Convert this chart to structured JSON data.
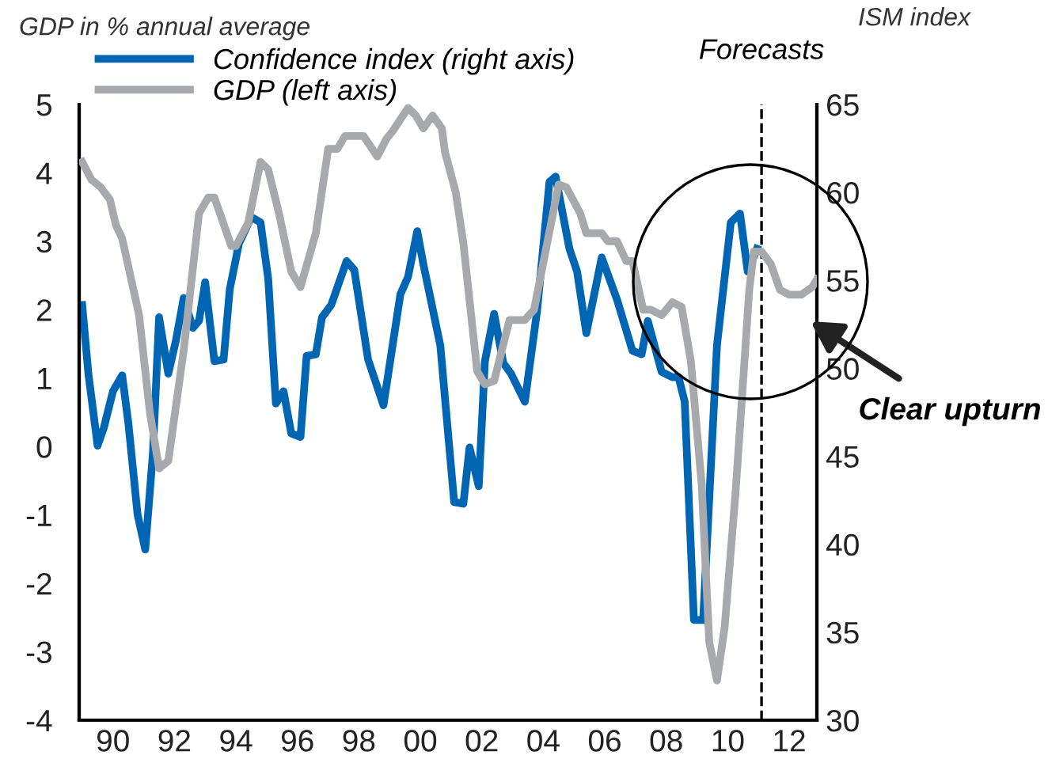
{
  "chart_data": {
    "type": "line",
    "ylabel": "GDP in % annual average",
    "y2label": "ISM index",
    "xlim": [
      1988.9,
      2012.9
    ],
    "xticks": [
      {
        "value": 1990,
        "label": "90"
      },
      {
        "value": 1992,
        "label": "92"
      },
      {
        "value": 1994,
        "label": "94"
      },
      {
        "value": 1996,
        "label": "96"
      },
      {
        "value": 1998,
        "label": "98"
      },
      {
        "value": 2000,
        "label": "00"
      },
      {
        "value": 2002,
        "label": "02"
      },
      {
        "value": 2004,
        "label": "04"
      },
      {
        "value": 2006,
        "label": "06"
      },
      {
        "value": 2008,
        "label": "08"
      },
      {
        "value": 2010,
        "label": "10"
      },
      {
        "value": 2012,
        "label": "12"
      }
    ],
    "ylim": [
      -4,
      5
    ],
    "yticks": [
      -4,
      -3,
      -2,
      -1,
      0,
      1,
      2,
      3,
      4,
      5
    ],
    "y2lim": [
      30,
      65
    ],
    "y2ticks": [
      30,
      35,
      40,
      45,
      50,
      55,
      60,
      65
    ],
    "series": [
      {
        "name": "Confidence index (right axis)",
        "color": "#0066b3",
        "axis": "y2",
        "x": [
          1989.0,
          1989.2,
          1989.5,
          1989.7,
          1990.0,
          1990.3,
          1990.5,
          1990.8,
          1991.05,
          1991.3,
          1991.5,
          1991.8,
          1992.05,
          1992.3,
          1992.6,
          1992.8,
          1993.0,
          1993.3,
          1993.6,
          1993.8,
          1994.1,
          1994.5,
          1994.8,
          1995.05,
          1995.3,
          1995.55,
          1995.8,
          1996.1,
          1996.3,
          1996.6,
          1996.8,
          1997.1,
          1997.6,
          1997.85,
          1998.3,
          1998.8,
          1999.35,
          1999.6,
          1999.9,
          2000.1,
          2000.65,
          2001.1,
          2001.4,
          2001.6,
          2001.9,
          2002.1,
          2002.4,
          2002.7,
          2002.95,
          2003.4,
          2003.8,
          2004.2,
          2004.4,
          2004.85,
          2005.1,
          2005.4,
          2005.9,
          2006.4,
          2006.9,
          2007.2,
          2007.4,
          2007.85,
          2008.2,
          2008.4,
          2008.6,
          2008.9,
          2009.2,
          2009.65,
          2010.1,
          2010.4,
          2010.65,
          2010.95
        ],
        "values": [
          53.6,
          49.7,
          45.6,
          46.6,
          48.7,
          49.6,
          46.9,
          41.7,
          39.7,
          45.2,
          52.9,
          49.7,
          51.6,
          54.0,
          52.3,
          52.7,
          54.9,
          50.4,
          50.5,
          54.5,
          57.1,
          58.6,
          58.3,
          55.1,
          48.0,
          48.7,
          46.3,
          46.1,
          50.7,
          50.8,
          52.9,
          53.6,
          56.1,
          55.6,
          50.5,
          47.9,
          54.2,
          55.2,
          57.8,
          55.9,
          51.3,
          42.4,
          42.3,
          45.5,
          43.3,
          50.4,
          53.1,
          50.3,
          49.7,
          48.1,
          53.3,
          60.6,
          60.9,
          56.8,
          55.5,
          52.0,
          56.3,
          53.9,
          51.0,
          50.8,
          52.7,
          49.8,
          49.5,
          49.5,
          48.1,
          35.7,
          35.7,
          51.3,
          58.3,
          58.8,
          55.5,
          56.8
        ]
      },
      {
        "name": "GDP (left axis)",
        "color": "#a8a9ad",
        "axis": "y",
        "x": [
          1989.0,
          1989.3,
          1989.6,
          1989.9,
          1990.1,
          1990.3,
          1990.85,
          1991.2,
          1991.5,
          1991.8,
          1992.3,
          1992.8,
          1993.1,
          1993.3,
          1993.85,
          1994.0,
          1994.4,
          1994.8,
          1995.05,
          1995.4,
          1995.8,
          1996.1,
          1996.6,
          1997.0,
          1997.3,
          1997.55,
          1998.15,
          1998.6,
          1998.9,
          1999.1,
          1999.6,
          1999.85,
          2000.1,
          2000.4,
          2000.7,
          2000.8,
          2001.15,
          2001.4,
          2001.85,
          2002.1,
          2002.4,
          2002.9,
          2003.4,
          2003.7,
          2004.5,
          2004.75,
          2005.2,
          2005.4,
          2005.9,
          2006.1,
          2006.4,
          2006.7,
          2006.9,
          2007.25,
          2007.5,
          2007.85,
          2008.2,
          2008.5,
          2008.8,
          2009.15,
          2009.4,
          2009.65,
          2009.9,
          2010.25,
          2010.5,
          2010.7,
          2010.85,
          2011.1,
          2011.4,
          2011.7,
          2012.0,
          2012.4,
          2012.75,
          2012.9
        ],
        "values": [
          4.16,
          3.9,
          3.79,
          3.61,
          3.23,
          3.04,
          1.92,
          0.5,
          -0.32,
          -0.21,
          1.4,
          3.41,
          3.64,
          3.64,
          2.93,
          2.93,
          3.27,
          4.16,
          4.05,
          3.41,
          2.56,
          2.33,
          3.12,
          4.35,
          4.35,
          4.54,
          4.54,
          4.24,
          4.5,
          4.61,
          4.95,
          4.84,
          4.65,
          4.84,
          4.65,
          4.31,
          3.72,
          2.97,
          1.1,
          0.91,
          0.96,
          1.85,
          1.85,
          2.0,
          3.83,
          3.79,
          3.41,
          3.12,
          3.12,
          3.0,
          3.0,
          2.71,
          2.71,
          2.0,
          2.0,
          1.92,
          2.11,
          2.04,
          1.25,
          -0.54,
          -2.86,
          -3.42,
          -2.64,
          -0.7,
          0.95,
          2.29,
          2.85,
          2.85,
          2.67,
          2.29,
          2.22,
          2.22,
          2.33,
          2.44
        ]
      }
    ],
    "ref_lines": [
      {
        "axis": "x",
        "value": 2011.1,
        "label": "Forecasts",
        "color": "#000000",
        "line_style": "dashed"
      }
    ],
    "annotations": [
      "Clear upturn"
    ],
    "legend": "top left",
    "grid": false,
    "marker": "none",
    "line_style": "solid"
  }
}
